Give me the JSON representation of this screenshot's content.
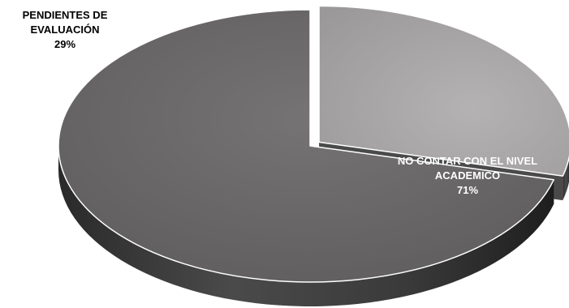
{
  "chart_data": {
    "type": "pie",
    "title": "",
    "slices": [
      {
        "label_lines": [
          "PENDIENTES DE",
          "EVALUACIÓN"
        ],
        "percent_label": "29%",
        "value": 29,
        "top_color": "#aaa8a8",
        "side_color": "#4a4a4a"
      },
      {
        "label_lines": [
          "NO CONTAR CON  EL NIVEL",
          "ACADEMICO"
        ],
        "percent_label": "71%",
        "value": 71,
        "top_color": "#6a6868",
        "side_color": "#3c3c3c"
      }
    ],
    "style": "3d-exploded",
    "legend": "none",
    "data_labels": "category-and-percent"
  }
}
